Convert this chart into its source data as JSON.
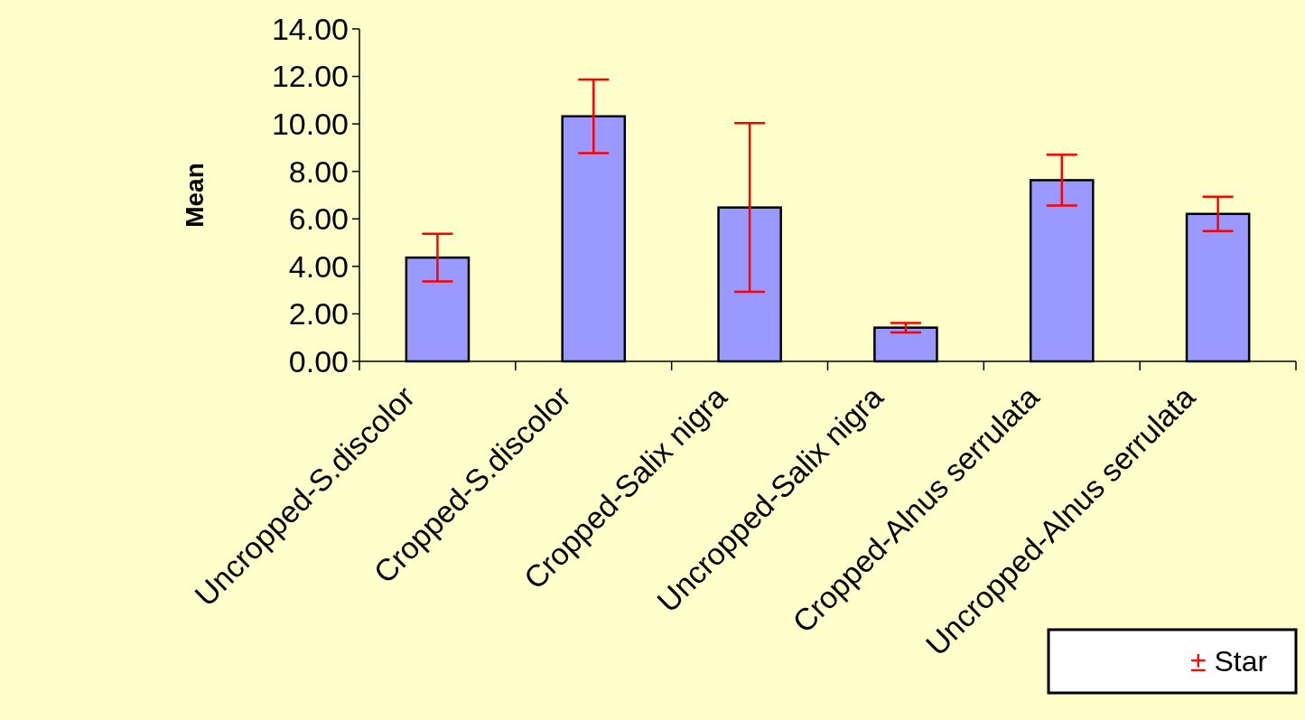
{
  "chart_data": {
    "type": "bar",
    "ylabel": "Mean",
    "categories": [
      "Uncropped-S.discolor",
      "Cropped-S.discolor",
      "Cropped-Salix nigra",
      "Uncropped-Salix nigra",
      "Cropped-Alnus serrulata",
      "Uncropped-Alnus serrulata"
    ],
    "values": [
      4.37,
      10.32,
      6.48,
      1.42,
      7.63,
      6.21
    ],
    "errors": [
      1.0,
      1.55,
      3.55,
      0.2,
      1.07,
      0.72
    ],
    "color": "#9999ff",
    "ylim": [
      0,
      14
    ],
    "yticks": [
      {
        "value": 0,
        "label": "0.00"
      },
      {
        "value": 2,
        "label": "2.00"
      },
      {
        "value": 4,
        "label": "4.00"
      },
      {
        "value": 6,
        "label": "6.00"
      },
      {
        "value": 8,
        "label": "8.00"
      },
      {
        "value": 10,
        "label": "10.00"
      },
      {
        "value": 12,
        "label": "12.00"
      },
      {
        "value": 14,
        "label": "14.00"
      }
    ],
    "grid": false,
    "annotations": [
      "± Star"
    ]
  }
}
